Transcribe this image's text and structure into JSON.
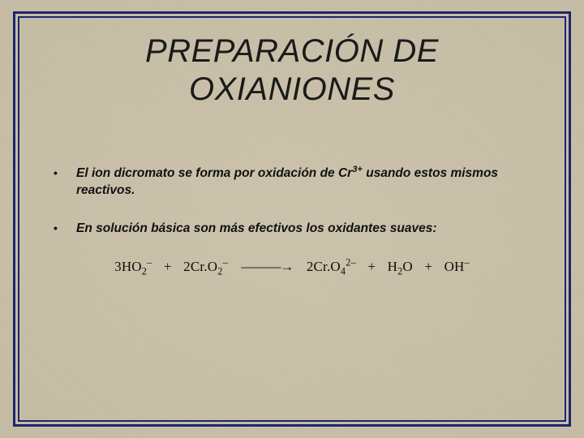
{
  "colors": {
    "frame": "#1a2670",
    "background": "#c9c0a8",
    "text": "#111111"
  },
  "title": {
    "line1": "PREPARACIÓN DE",
    "line2": "OXIANIONES",
    "fontsize": 40,
    "style": "italic"
  },
  "bullets": [
    {
      "pre": "El ion dicromato se forma por oxidación de Cr",
      "sup": "3+",
      "post": " usando estos mismos reactivos."
    },
    {
      "pre": "En solución básica son más efectivos los oxidantes suaves:",
      "sup": "",
      "post": ""
    }
  ],
  "equation": {
    "terms": [
      {
        "coef": "3",
        "base": "HO",
        "sub": "2",
        "sup": "–"
      },
      {
        "coef": "2",
        "base": "Cr.O",
        "sub": "2",
        "sup": "–"
      }
    ],
    "arrow": "———→",
    "products": [
      {
        "coef": "2",
        "base": "Cr.O",
        "sub": "4",
        "sup": "2–"
      },
      {
        "coef": "",
        "base": "H",
        "sub": "2",
        "sup": "",
        "tail": "O"
      },
      {
        "coef": "",
        "base": "OH",
        "sub": "",
        "sup": "–"
      }
    ],
    "plus": "+"
  }
}
